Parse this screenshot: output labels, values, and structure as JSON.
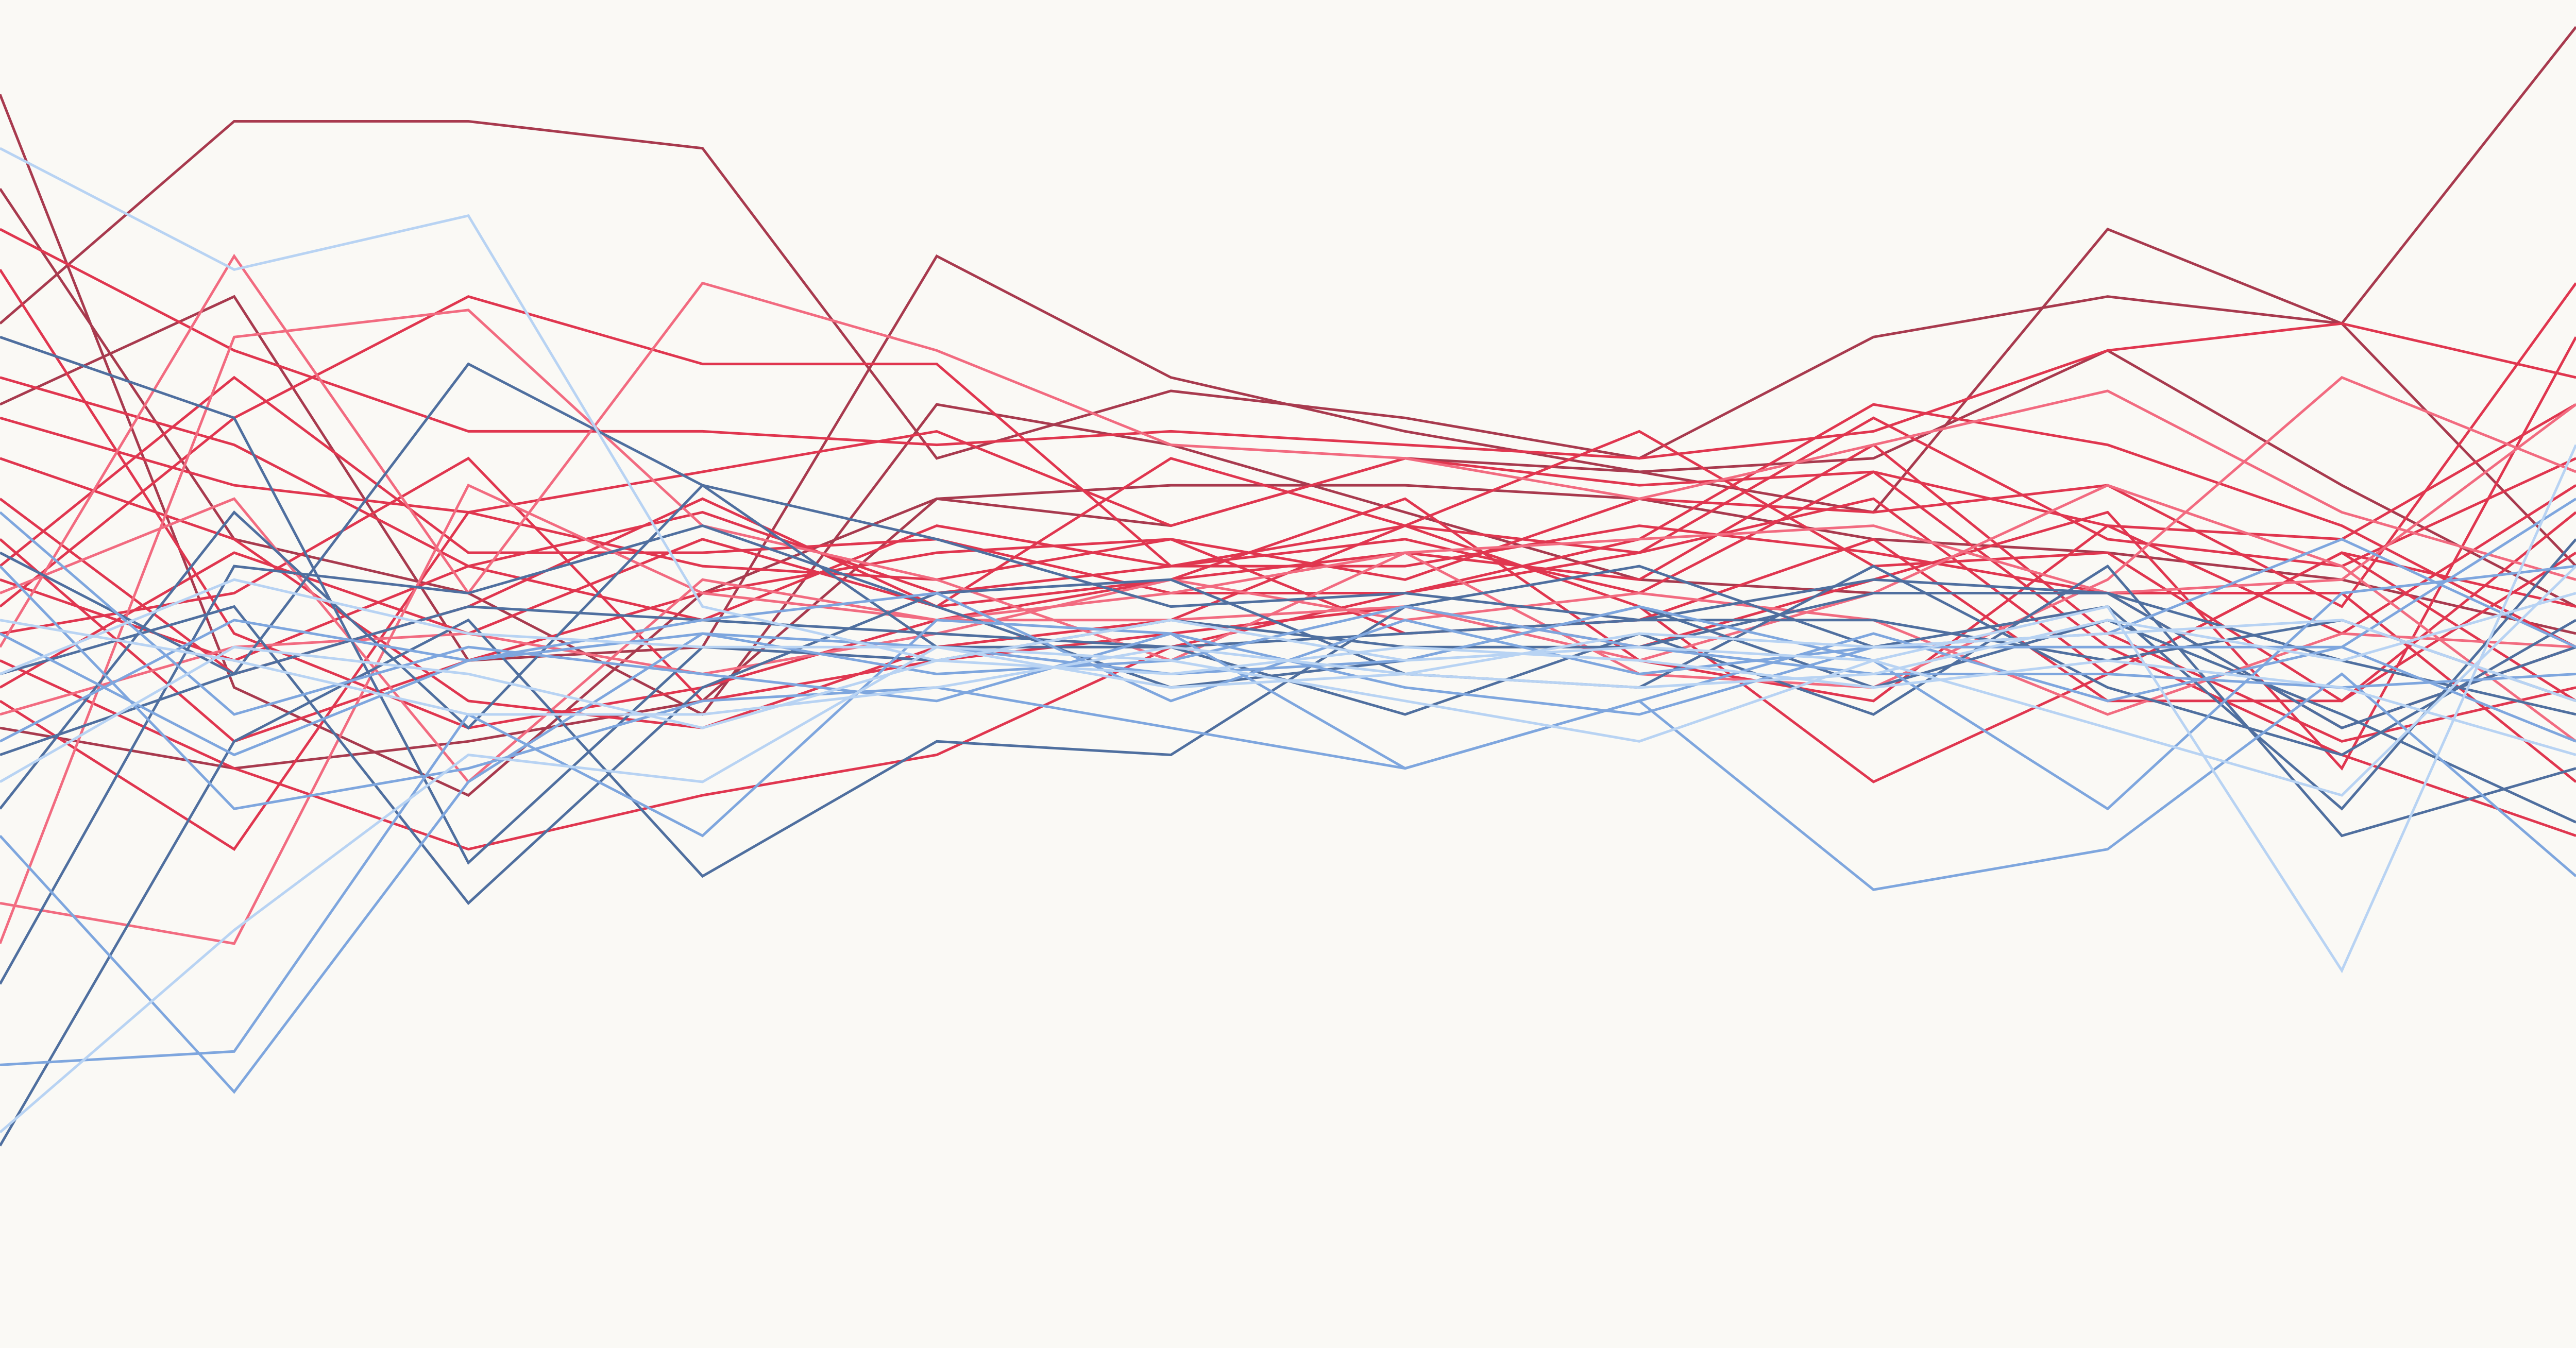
{
  "chart_data": {
    "type": "line",
    "title": "",
    "xlabel": "",
    "ylabel": "",
    "grid": false,
    "legend": "none",
    "x": [
      0,
      1,
      2,
      3,
      4,
      5,
      6,
      7,
      8,
      9,
      10,
      11
    ],
    "ylim": [
      0,
      100
    ],
    "background": "#faf9f5",
    "palette": {
      "dark_red": "#a83a4e",
      "red": "#e0364f",
      "pink": "#f26b80",
      "dark_blue": "#4f6f9f",
      "mid_blue": "#7ea6de",
      "light_blue": "#b8d3f3"
    },
    "series": [
      {
        "color": "#a83a4e",
        "values": [
          76,
          91,
          91,
          89,
          66,
          71,
          69,
          66,
          75,
          78,
          76,
          98
        ]
      },
      {
        "color": "#a83a4e",
        "values": [
          70,
          78,
          51,
          52,
          81,
          72,
          68,
          65,
          62,
          83,
          76,
          58
        ]
      },
      {
        "color": "#a83a4e",
        "values": [
          93,
          49,
          41,
          56,
          63,
          64,
          64,
          63,
          60,
          59,
          57,
          53
        ]
      },
      {
        "color": "#a83a4e",
        "values": [
          86,
          60,
          56,
          47,
          70,
          67,
          62,
          57,
          56,
          56,
          46,
          52
        ]
      },
      {
        "color": "#a83a4e",
        "values": [
          46,
          43,
          45,
          48,
          63,
          61,
          66,
          65,
          66,
          74,
          64,
          55
        ]
      },
      {
        "color": "#e0364f",
        "values": [
          83,
          74,
          68,
          68,
          67,
          68,
          67,
          66,
          68,
          74,
          76,
          72
        ]
      },
      {
        "color": "#e0364f",
        "values": [
          51,
          43,
          37,
          41,
          44,
          52,
          56,
          60,
          70,
          67,
          61,
          52
        ]
      },
      {
        "color": "#e0364f",
        "values": [
          55,
          69,
          78,
          73,
          73,
          58,
          61,
          59,
          69,
          60,
          58,
          66
        ]
      },
      {
        "color": "#e0364f",
        "values": [
          48,
          37,
          62,
          65,
          68,
          61,
          66,
          64,
          65,
          52,
          44,
          38
        ]
      },
      {
        "color": "#e0364f",
        "values": [
          63,
          50,
          55,
          63,
          55,
          66,
          61,
          55,
          42,
          50,
          59,
          48
        ]
      },
      {
        "color": "#e0364f",
        "values": [
          72,
          67,
          58,
          54,
          61,
          58,
          60,
          56,
          65,
          61,
          53,
          64
        ]
      },
      {
        "color": "#e0364f",
        "values": [
          80,
          53,
          46,
          49,
          54,
          57,
          63,
          51,
          48,
          61,
          60,
          70
        ]
      },
      {
        "color": "#e0364f",
        "values": [
          58,
          72,
          59,
          59,
          60,
          56,
          56,
          59,
          63,
          50,
          59,
          55
        ]
      },
      {
        "color": "#e0364f",
        "values": [
          60,
          45,
          51,
          56,
          59,
          60,
          57,
          63,
          62,
          64,
          55,
          79
        ]
      },
      {
        "color": "#e0364f",
        "values": [
          66,
          60,
          48,
          46,
          52,
          54,
          61,
          68,
          58,
          59,
          48,
          62
        ]
      },
      {
        "color": "#e0364f",
        "values": [
          53,
          56,
          66,
          48,
          51,
          53,
          55,
          52,
          57,
          62,
          43,
          75
        ]
      },
      {
        "color": "#e0364f",
        "values": [
          69,
          64,
          62,
          58,
          57,
          60,
          53,
          54,
          60,
          48,
          48,
          59
        ]
      },
      {
        "color": "#e0364f",
        "values": [
          57,
          51,
          58,
          62,
          56,
          58,
          58,
          61,
          59,
          56,
          56,
          42
        ]
      },
      {
        "color": "#e0364f",
        "values": [
          49,
          59,
          53,
          60,
          55,
          57,
          59,
          57,
          67,
          53,
          45,
          49
        ]
      },
      {
        "color": "#f26b80",
        "values": [
          52,
          81,
          56,
          79,
          74,
          67,
          66,
          63,
          67,
          71,
          62,
          57
        ]
      },
      {
        "color": "#f26b80",
        "values": [
          33,
          30,
          64,
          56,
          54,
          54,
          55,
          51,
          56,
          64,
          58,
          45
        ]
      },
      {
        "color": "#f26b80",
        "values": [
          30,
          75,
          77,
          61,
          57,
          51,
          59,
          50,
          49,
          57,
          72,
          65
        ]
      },
      {
        "color": "#f26b80",
        "values": [
          47,
          52,
          53,
          50,
          53,
          57,
          54,
          56,
          54,
          47,
          53,
          52
        ]
      },
      {
        "color": "#f26b80",
        "values": [
          56,
          63,
          42,
          57,
          54,
          56,
          59,
          60,
          61,
          56,
          57,
          70
        ]
      },
      {
        "color": "#4f6f9f",
        "values": [
          15,
          45,
          54,
          35,
          45,
          44,
          55,
          58,
          52,
          55,
          40,
          60
        ]
      },
      {
        "color": "#4f6f9f",
        "values": [
          59,
          50,
          73,
          64,
          60,
          55,
          56,
          54,
          54,
          51,
          54,
          48
        ]
      },
      {
        "color": "#4f6f9f",
        "values": [
          50,
          55,
          33,
          49,
          56,
          57,
          50,
          49,
          58,
          49,
          44,
          54
        ]
      },
      {
        "color": "#4f6f9f",
        "values": [
          40,
          62,
          46,
          64,
          52,
          52,
          53,
          54,
          57,
          56,
          51,
          47
        ]
      },
      {
        "color": "#4f6f9f",
        "values": [
          27,
          58,
          56,
          61,
          55,
          49,
          51,
          55,
          49,
          54,
          47,
          39
        ]
      },
      {
        "color": "#4f6f9f",
        "values": [
          75,
          69,
          36,
          52,
          51,
          54,
          52,
          52,
          56,
          56,
          46,
          52
        ]
      },
      {
        "color": "#4f6f9f",
        "values": [
          44,
          50,
          55,
          54,
          53,
          52,
          47,
          53,
          47,
          58,
          38,
          43
        ]
      },
      {
        "color": "#7ea6de",
        "values": [
          21,
          22,
          47,
          38,
          54,
          53,
          43,
          48,
          34,
          37,
          50,
          35
        ]
      },
      {
        "color": "#7ea6de",
        "values": [
          38,
          19,
          42,
          53,
          52,
          50,
          51,
          55,
          51,
          40,
          56,
          58
        ]
      },
      {
        "color": "#7ea6de",
        "values": [
          62,
          47,
          52,
          50,
          48,
          53,
          49,
          47,
          52,
          53,
          60,
          52
        ]
      },
      {
        "color": "#7ea6de",
        "values": [
          53,
          44,
          51,
          54,
          56,
          48,
          54,
          50,
          52,
          52,
          52,
          63
        ]
      },
      {
        "color": "#7ea6de",
        "values": [
          45,
          54,
          51,
          53,
          50,
          51,
          55,
          52,
          50,
          50,
          49,
          50
        ]
      },
      {
        "color": "#7ea6de",
        "values": [
          58,
          40,
          43,
          48,
          49,
          46,
          43,
          48,
          53,
          48,
          52,
          45
        ]
      },
      {
        "color": "#b8d3f3",
        "values": [
          89,
          80,
          84,
          55,
          51,
          54,
          51,
          52,
          51,
          55,
          28,
          67
        ]
      },
      {
        "color": "#b8d3f3",
        "values": [
          16,
          31,
          44,
          42,
          52,
          51,
          48,
          45,
          51,
          46,
          41,
          58
        ]
      },
      {
        "color": "#b8d3f3",
        "values": [
          54,
          51,
          47,
          47,
          49,
          52,
          50,
          53,
          52,
          53,
          54,
          48
        ]
      },
      {
        "color": "#b8d3f3",
        "values": [
          50,
          57,
          53,
          52,
          52,
          49,
          50,
          49,
          50,
          54,
          51,
          56
        ]
      },
      {
        "color": "#b8d3f3",
        "values": [
          42,
          52,
          50,
          46,
          51,
          50,
          52,
          51,
          49,
          51,
          49,
          44
        ]
      }
    ]
  }
}
